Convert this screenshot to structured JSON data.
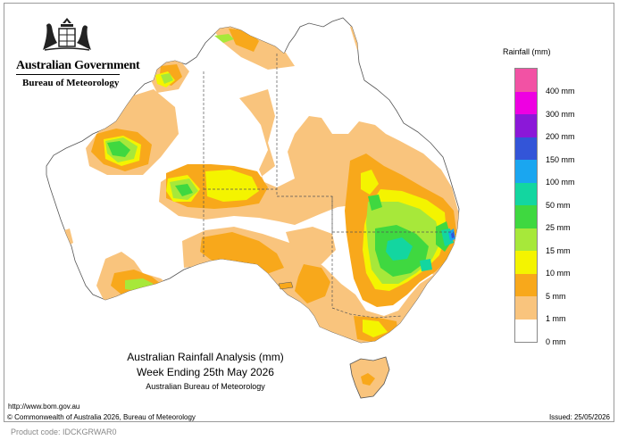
{
  "header": {
    "government": "Australian Government",
    "bureau": "Bureau of Meteorology"
  },
  "legend": {
    "title": "Rainfall (mm)",
    "items": [
      {
        "label": "400 mm",
        "color": "#f252a4"
      },
      {
        "label": "300 mm",
        "color": "#ee00e2"
      },
      {
        "label": "200 mm",
        "color": "#8b18d8"
      },
      {
        "label": "150 mm",
        "color": "#3355d8"
      },
      {
        "label": "100 mm",
        "color": "#1aa6f0"
      },
      {
        "label": "50 mm",
        "color": "#13d6a0"
      },
      {
        "label": "25 mm",
        "color": "#3fd840"
      },
      {
        "label": "15 mm",
        "color": "#a7e83a"
      },
      {
        "label": "10 mm",
        "color": "#f4f400"
      },
      {
        "label": "5 mm",
        "color": "#f8a81b"
      },
      {
        "label": "1 mm",
        "color": "#f9c47d"
      },
      {
        "label": "0 mm",
        "color": "#ffffff"
      }
    ]
  },
  "map": {
    "title": "Australian Rainfall Analysis (mm)",
    "period": "Week Ending 25th May 2026",
    "agency": "Australian Bureau of Meteorology"
  },
  "footer": {
    "url": "http://www.bom.gov.au",
    "copyright": "© Commonwealth of Australia 2026, Bureau of Meteorology",
    "issued": "Issued: 25/05/2026",
    "product": "Product code: IDCKGRWAR0"
  }
}
